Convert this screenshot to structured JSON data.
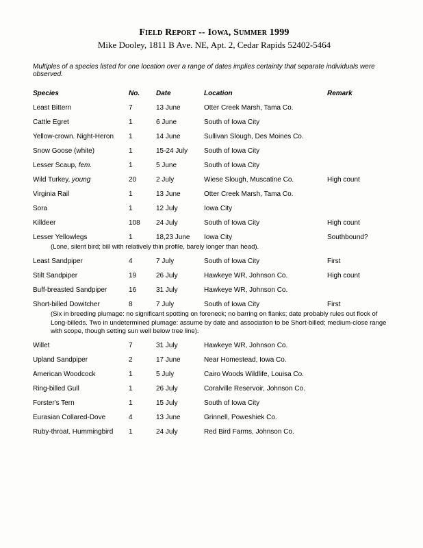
{
  "title_prefix": "Field Report -- Iowa, Summer 1999",
  "subtitle": "Mike Dooley, 1811 B Ave. NE, Apt. 2, Cedar Rapids 52402-5464",
  "intro_note": "Multiples of a species listed for one location over a range of dates implies certainty that separate individuals were observed.",
  "headers": {
    "species": "Species",
    "no": "No.",
    "date": "Date",
    "location": "Location",
    "remark": "Remark"
  },
  "rows": [
    {
      "species": "Least Bittern",
      "no": "7",
      "date": "13 June",
      "location": "Otter Creek Marsh, Tama Co.",
      "remark": ""
    },
    {
      "species": "Cattle Egret",
      "no": "1",
      "date": "6 June",
      "location": "South of Iowa City",
      "remark": ""
    },
    {
      "species": "Yellow-crown. Night-Heron",
      "no": "1",
      "date": "14 June",
      "location": "Sullivan Slough, Des Moines Co.",
      "remark": ""
    },
    {
      "species": "Snow Goose (white)",
      "no": "1",
      "date": "15-24 July",
      "location": "South of Iowa City",
      "remark": ""
    },
    {
      "species": "Lesser Scaup, ",
      "species_suffix_ital": "fem.",
      "no": "1",
      "date": "5 June",
      "location": "South of Iowa City",
      "remark": ""
    },
    {
      "species": "Wild Turkey, ",
      "species_suffix_ital": "young",
      "no": "20",
      "date": "2 July",
      "location": "Wiese Slough, Muscatine Co.",
      "remark": "High count"
    },
    {
      "species": "Virginia Rail",
      "no": "1",
      "date": "13 June",
      "location": "Otter Creek Marsh, Tama Co.",
      "remark": ""
    },
    {
      "species": "Sora",
      "no": "1",
      "date": "12 July",
      "location": "Iowa City",
      "remark": ""
    },
    {
      "species": "Killdeer",
      "no": "108",
      "date": "24 July",
      "location": "South of Iowa City",
      "remark": "High count"
    },
    {
      "species": "Lesser Yellowlegs",
      "no": "1",
      "date": "18,23 June",
      "location": "Iowa City",
      "remark": "Southbound?",
      "subnote": "(Lone, silent bird; bill with relatively thin profile, barely longer than head)."
    },
    {
      "species": "Least Sandpiper",
      "no": "4",
      "date": "7 July",
      "location": "South of Iowa City",
      "remark": "First"
    },
    {
      "species": "Stilt Sandpiper",
      "no": "19",
      "date": "26 July",
      "location": "Hawkeye WR, Johnson Co.",
      "remark": "High count"
    },
    {
      "species": "Buff-breasted Sandpiper",
      "no": "16",
      "date": "31 July",
      "location": "Hawkeye WR, Johnson Co.",
      "remark": ""
    },
    {
      "species": "Short-billed Dowitcher",
      "no": "8",
      "date": "7 July",
      "location": "South of Iowa City",
      "remark": "First",
      "subnote": "(Six in breeding plumage: no significant spotting on foreneck; no barring on flanks; date probably rules out flock of Long-billeds. Two in undetermined plumage: assume by date and association to be Short-billed; medium-close range with scope, though setting sun well below tree line)."
    },
    {
      "species": "Willet",
      "no": "7",
      "date": "31 July",
      "location": "Hawkeye WR, Johnson Co.",
      "remark": ""
    },
    {
      "species": "Upland Sandpiper",
      "no": "2",
      "date": "17 June",
      "location": "Near Homestead, Iowa Co.",
      "remark": ""
    },
    {
      "species": "American Woodcock",
      "no": "1",
      "date": "5 July",
      "location": "Cairo Woods Wildlife, Louisa Co.",
      "remark": ""
    },
    {
      "species": "Ring-billed Gull",
      "no": "1",
      "date": "26 July",
      "location": "Coralville Reservoir, Johnson Co.",
      "remark": ""
    },
    {
      "species": "Forster's Tern",
      "no": "1",
      "date": "15 July",
      "location": "South of Iowa City",
      "remark": ""
    },
    {
      "species": "Eurasian Collared-Dove",
      "no": "4",
      "date": "13 June",
      "location": "Grinnell, Poweshiek Co.",
      "remark": ""
    },
    {
      "species": "Ruby-throat. Hummingbird",
      "no": "1",
      "date": "24 July",
      "location": "Red Bird Farms, Johnson Co.",
      "remark": ""
    }
  ]
}
